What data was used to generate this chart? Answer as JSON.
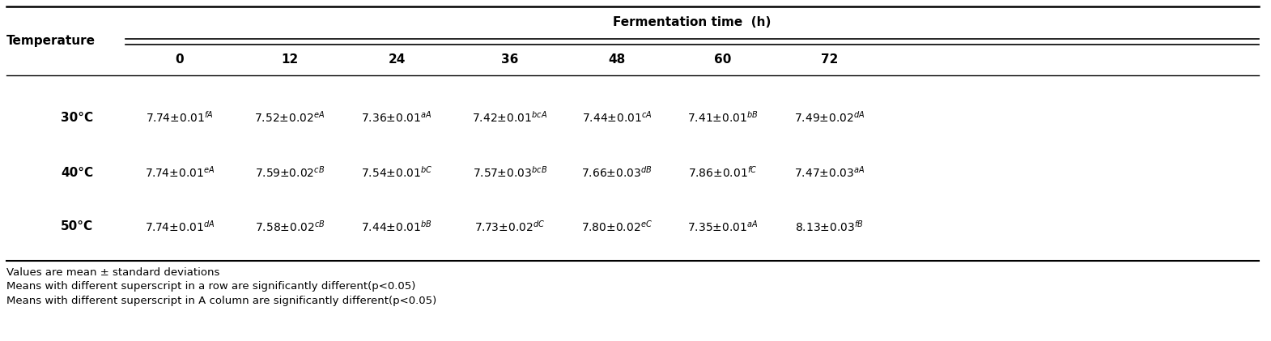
{
  "title": "Fermentation time  (h)",
  "col_header": "Temperature",
  "time_points": [
    "0",
    "12",
    "24",
    "36",
    "48",
    "60",
    "72"
  ],
  "rows": [
    {
      "label": "30°C",
      "values": [
        "7.74±0.01$^{fA}$",
        "7.52±0.02$^{eA}$",
        "7.36±0.01$^{aA}$",
        "7.42±0.01$^{bcA}$",
        "7.44±0.01$^{cA}$",
        "7.41±0.01$^{bB}$",
        "7.49±0.02$^{dA}$"
      ]
    },
    {
      "label": "40°C",
      "values": [
        "7.74±0.01$^{eA}$",
        "7.59±0.02$^{cB}$",
        "7.54±0.01$^{bC}$",
        "7.57±0.03$^{bcB}$",
        "7.66±0.03$^{dB}$",
        "7.86±0.01$^{fC}$",
        "7.47±0.03$^{aA}$"
      ]
    },
    {
      "label": "50°C",
      "values": [
        "7.74±0.01$^{dA}$",
        "7.58±0.02$^{cB}$",
        "7.44±0.01$^{bB}$",
        "7.73±0.02$^{dC}$",
        "7.80±0.02$^{eC}$",
        "7.35±0.01$^{aA}$",
        "8.13±0.03$^{fB}$"
      ]
    }
  ],
  "footnotes": [
    "Values are mean ± standard deviations",
    "Means with different superscript in a row are significantly different(p<0.05)",
    "Means with different superscript in A column are significantly different(p<0.05)"
  ],
  "bg_color": "#ffffff",
  "text_color": "#000000",
  "header_fontsize": 11,
  "cell_fontsize": 10,
  "footnote_fontsize": 9.5,
  "fig_width": 15.7,
  "fig_height": 4.21,
  "dpi": 100
}
